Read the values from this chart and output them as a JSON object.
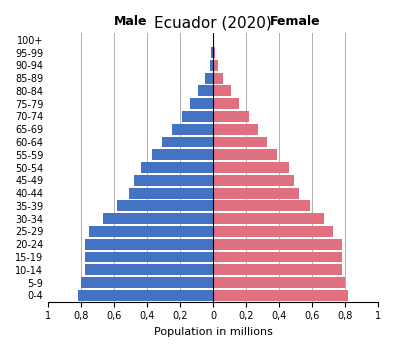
{
  "title": "Ecuador (2020)",
  "xlabel": "Population in millions",
  "male_label": "Male",
  "female_label": "Female",
  "age_groups": [
    "0-4",
    "5-9",
    "10-14",
    "15-19",
    "20-24",
    "25-29",
    "30-34",
    "35-39",
    "40-44",
    "45-49",
    "50-54",
    "55-59",
    "60-64",
    "65-69",
    "70-74",
    "75-79",
    "80-84",
    "85-89",
    "90-94",
    "95-99",
    "100+"
  ],
  "male_values": [
    0.82,
    0.8,
    0.78,
    0.78,
    0.78,
    0.75,
    0.67,
    0.58,
    0.51,
    0.48,
    0.44,
    0.37,
    0.31,
    0.25,
    0.19,
    0.14,
    0.09,
    0.05,
    0.02,
    0.01,
    0.003
  ],
  "female_values": [
    0.82,
    0.8,
    0.78,
    0.78,
    0.78,
    0.73,
    0.67,
    0.59,
    0.52,
    0.49,
    0.46,
    0.39,
    0.33,
    0.27,
    0.22,
    0.16,
    0.11,
    0.06,
    0.03,
    0.01,
    0.003
  ],
  "male_color": "#4472C4",
  "female_color": "#E07080",
  "bg_color": "#ffffff",
  "xlim": 1.0,
  "grid_color": "#b0b0b0",
  "tick_labels": [
    "1",
    "0,8",
    "0,6",
    "0,4",
    "0,2",
    "0",
    "0,2",
    "0,4",
    "0,6",
    "0,8",
    "1"
  ]
}
